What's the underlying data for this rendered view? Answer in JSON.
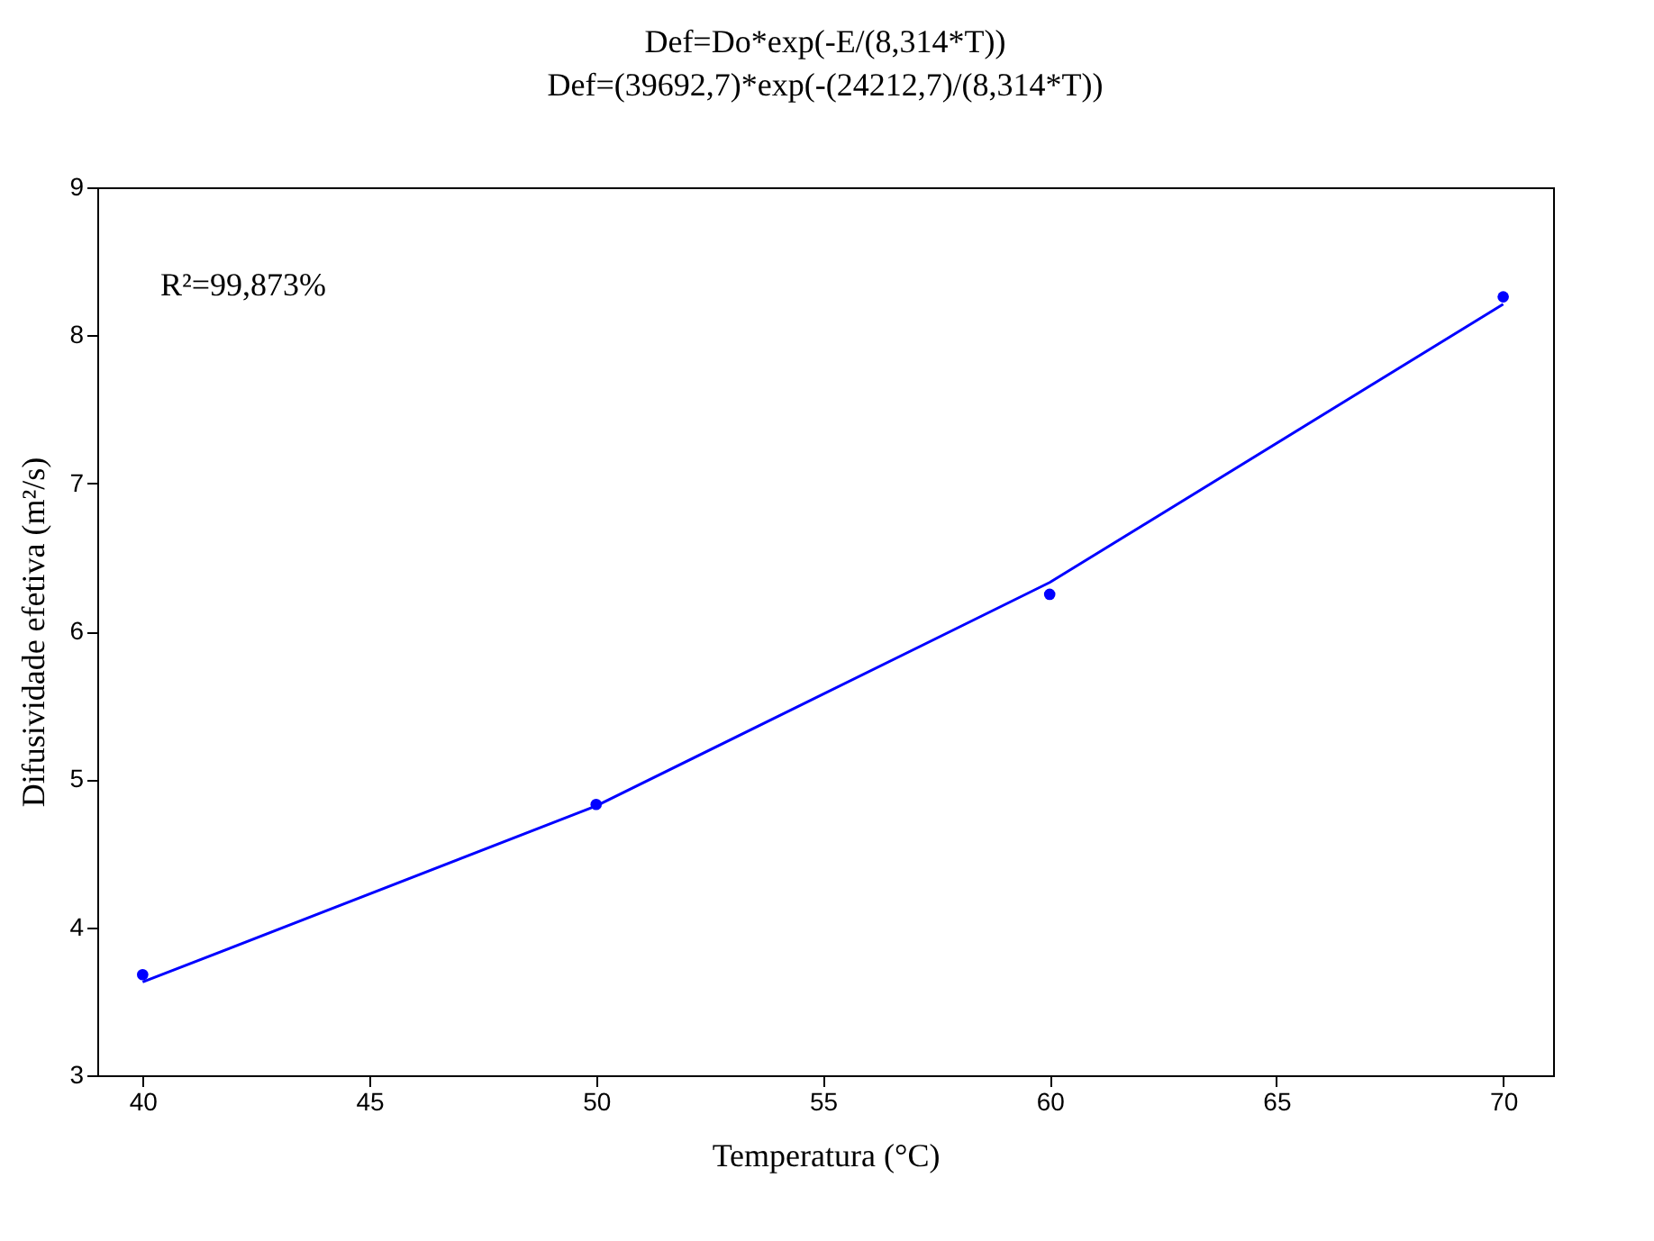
{
  "chart_data": {
    "type": "scatter",
    "title": "Def=Do*exp(-E/(8,314*T))",
    "subtitle": "Def=(39692,7)*exp(-(24212,7)/(8,314*T))",
    "xlabel": "Temperatura (°C)",
    "ylabel": "Difusividade efetiva (m²/s)",
    "x": [
      40,
      50,
      60,
      70
    ],
    "series": [
      {
        "type": "line",
        "color": "#0000ff",
        "values": [
          3.63,
          4.82,
          6.33,
          8.21
        ],
        "marker": "none"
      },
      {
        "color": "#0000ff",
        "values": [
          3.68,
          4.83,
          6.25,
          8.26
        ],
        "marker": "circle"
      }
    ],
    "xlim": [
      39.0,
      71.1
    ],
    "xticks": [
      40,
      45,
      50,
      55,
      60,
      65,
      70
    ],
    "ylim": [
      3,
      9
    ],
    "yticks": [
      3,
      4,
      5,
      6,
      7,
      8,
      9
    ],
    "annotations": [
      "R²=99,873%"
    ],
    "grid": false
  }
}
